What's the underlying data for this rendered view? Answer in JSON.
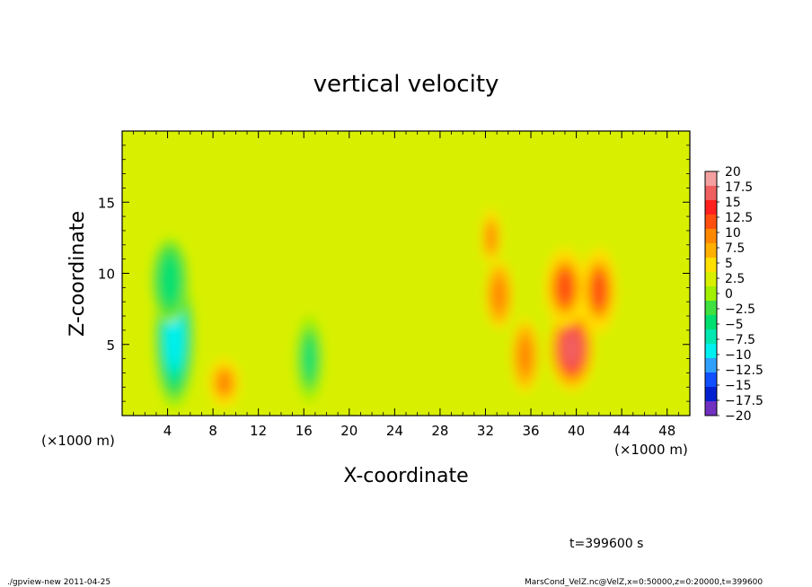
{
  "chart_data": {
    "type": "heatmap",
    "title": "vertical velocity",
    "xlabel": "X-coordinate",
    "ylabel": "Z-coordinate",
    "x_unit_label": "(×1000 m)",
    "y_unit_label": "(×1000 m)",
    "xlim": [
      0,
      50
    ],
    "ylim": [
      0,
      20
    ],
    "x_ticks": [
      4,
      8,
      12,
      16,
      20,
      24,
      28,
      32,
      36,
      40,
      44,
      48
    ],
    "y_ticks": [
      5,
      10,
      15
    ],
    "colorbar": {
      "levels": [
        20,
        17.5,
        15,
        12.5,
        10,
        7.5,
        5,
        2.5,
        0,
        -2.5,
        -5,
        -7.5,
        -10,
        -12.5,
        -15,
        -17.5,
        -20
      ],
      "labels": [
        "20",
        "17.5",
        "15",
        "12.5",
        "10",
        "7.5",
        "5",
        "2.5",
        "0",
        "−2.5",
        "−5",
        "−7.5",
        "−10",
        "−12.5",
        "−15",
        "−17.5",
        "−20"
      ],
      "colors": [
        "#f4a0a0",
        "#f06060",
        "#ff2020",
        "#ff5010",
        "#ff8800",
        "#ffb000",
        "#ffe000",
        "#d8f000",
        "#a0f000",
        "#40e040",
        "#00e070",
        "#00e8b0",
        "#00f0f0",
        "#30a0ff",
        "#1050ff",
        "#0020d0",
        "#7030c0"
      ]
    },
    "features": [
      {
        "x": 4.6,
        "z": 5.5,
        "value": -12,
        "sx": 0.9,
        "sz": 2.5
      },
      {
        "x": 4.2,
        "z": 9.5,
        "value": -7,
        "sx": 0.8,
        "sz": 1.5
      },
      {
        "x": 9,
        "z": 2.3,
        "value": 8,
        "sx": 0.8,
        "sz": 1.0
      },
      {
        "x": 16.5,
        "z": 4,
        "value": -6,
        "sx": 0.6,
        "sz": 1.5
      },
      {
        "x": 32.5,
        "z": 12.5,
        "value": 8,
        "sx": 0.5,
        "sz": 1.2
      },
      {
        "x": 33.2,
        "z": 8.5,
        "value": 9,
        "sx": 0.7,
        "sz": 1.4
      },
      {
        "x": 35.5,
        "z": 4.2,
        "value": 9,
        "sx": 0.7,
        "sz": 1.5
      },
      {
        "x": 39.6,
        "z": 4.7,
        "value": 16,
        "sx": 1.0,
        "sz": 1.5
      },
      {
        "x": 39.0,
        "z": 9.0,
        "value": 11,
        "sx": 0.9,
        "sz": 1.4
      },
      {
        "x": 42.0,
        "z": 8.8,
        "value": 11,
        "sx": 0.8,
        "sz": 1.5
      }
    ],
    "background_value": 0.5,
    "time_label": "t=399600 s"
  },
  "footer": {
    "left": "./gpview-new  2011-04-25",
    "right": "MarsCond_VelZ.nc@VelZ,x=0:50000,z=0:20000,t=399600"
  }
}
